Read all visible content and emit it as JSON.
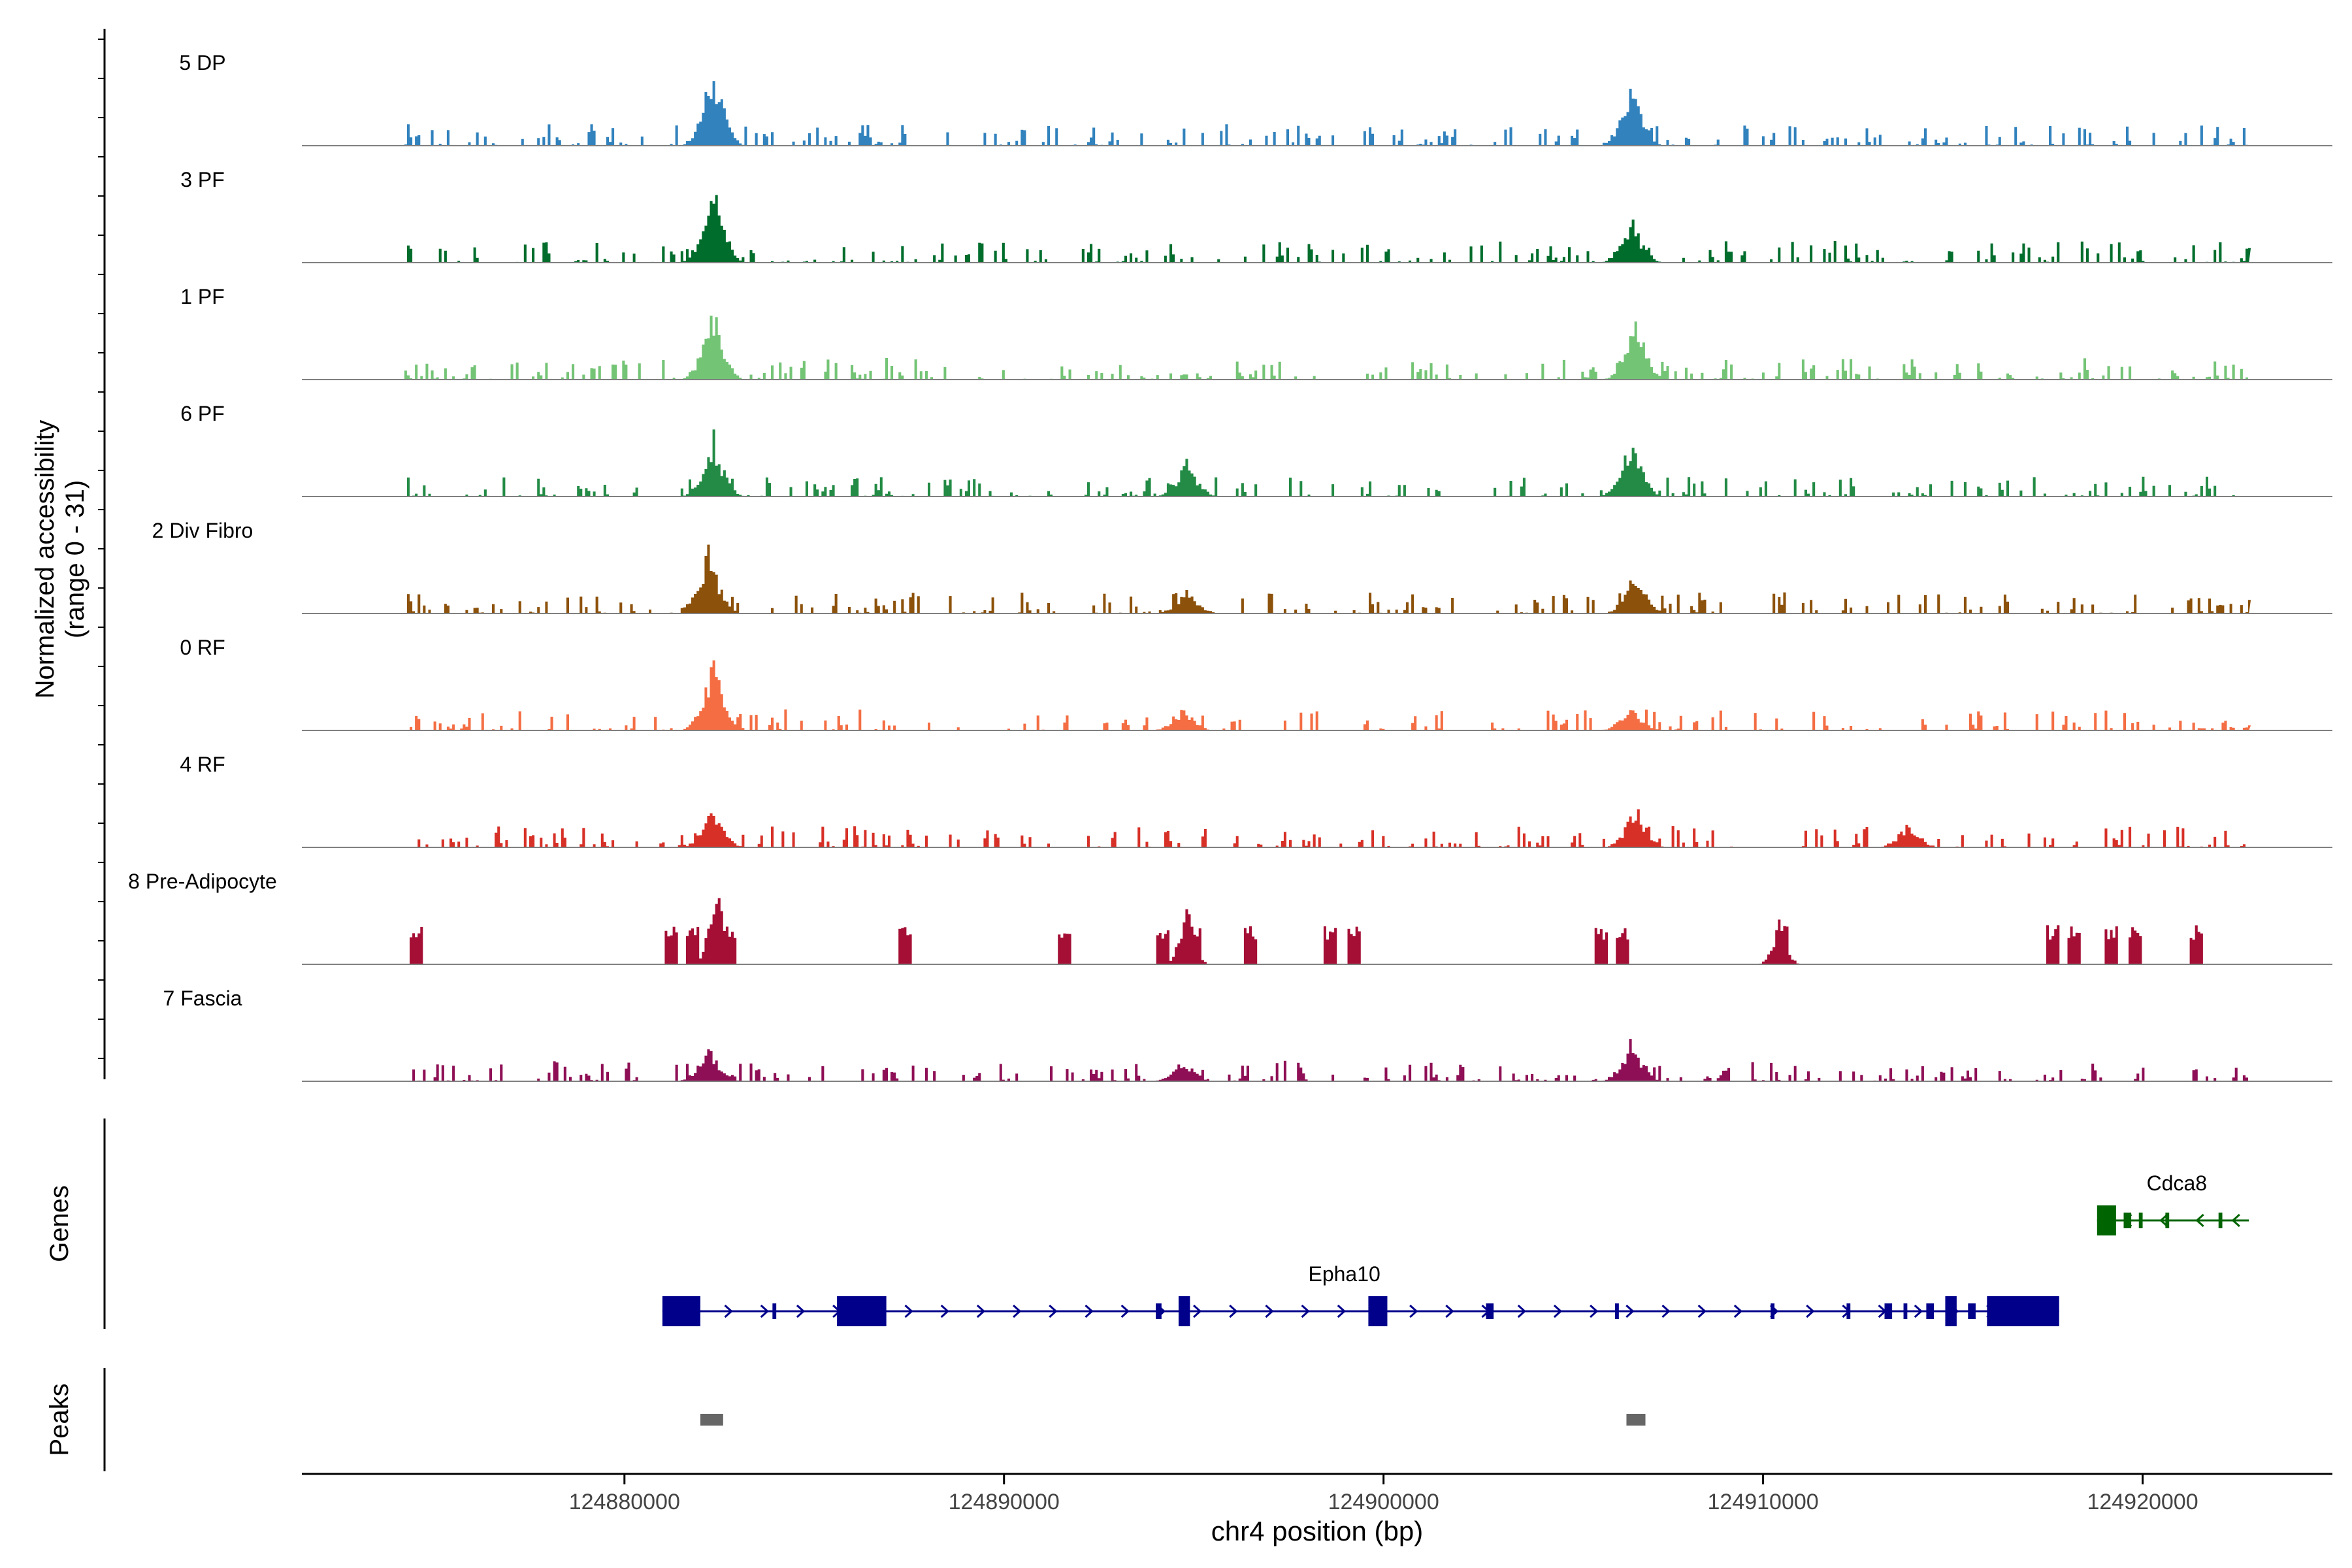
{
  "chart_data": {
    "type": "coverage",
    "y_axis_title_line1": "Normalized accessibility",
    "y_axis_title_line2": "(range 0 - 31)",
    "x_axis_title": "chr4 position (bp)",
    "x_range": [
      124871500,
      124925000
    ],
    "x_ticks": [
      124880000,
      124890000,
      124900000,
      124910000,
      124920000
    ],
    "x_tick_labels": [
      "124880000",
      "124890000",
      "124900000",
      "124910000",
      "124920000"
    ],
    "tracks": [
      {
        "name": "5 DP",
        "color": "#3182BD",
        "peaks": [
          [
            124882300,
            0.95
          ],
          [
            124906500,
            0.78
          ]
        ],
        "style": "dense"
      },
      {
        "name": "3 PF",
        "color": "#006D2C",
        "peaks": [
          [
            124882300,
            0.95
          ],
          [
            124906500,
            0.52
          ]
        ],
        "style": "dense"
      },
      {
        "name": "1 PF",
        "color": "#74C476",
        "peaks": [
          [
            124882300,
            0.82
          ],
          [
            124906600,
            0.72
          ]
        ],
        "style": "dense"
      },
      {
        "name": "6 PF",
        "color": "#238B45",
        "peaks": [
          [
            124882300,
            0.72
          ],
          [
            124906500,
            0.7
          ],
          [
            124894800,
            0.42
          ]
        ],
        "style": "dense"
      },
      {
        "name": "2 Div Fibro",
        "color": "#8C510A",
        "peaks": [
          [
            124882200,
            0.75
          ],
          [
            124906600,
            0.48
          ],
          [
            124894800,
            0.3
          ]
        ],
        "style": "dense"
      },
      {
        "name": "0 RF",
        "color": "#F46D43",
        "peaks": [
          [
            124882300,
            0.8
          ],
          [
            124906500,
            0.3
          ],
          [
            124894700,
            0.25
          ]
        ],
        "style": "dense"
      },
      {
        "name": "4 RF",
        "color": "#D73027",
        "peaks": [
          [
            124882300,
            0.45
          ],
          [
            124906600,
            0.48
          ],
          [
            124913800,
            0.3
          ]
        ],
        "style": "dense"
      },
      {
        "name": "8 Pre-Adipocyte",
        "color": "#A50F35",
        "peaks": [
          [
            124882400,
            0.98
          ],
          [
            124894800,
            0.82
          ],
          [
            124910400,
            0.48
          ]
        ],
        "style": "sparse"
      },
      {
        "name": "7 Fascia",
        "color": "#8E0F55",
        "peaks": [
          [
            124882200,
            0.42
          ],
          [
            124906500,
            0.48
          ],
          [
            124894700,
            0.25
          ]
        ],
        "style": "dense"
      }
    ],
    "genes_label": "Genes",
    "peaks_label": "Peaks",
    "genes": [
      {
        "name": "Epha10",
        "strand": "+",
        "color": "#00008B",
        "start": 124881000,
        "end": 124917800,
        "exons": [
          [
            124881000,
            124882000
          ],
          [
            124883900,
            124884000
          ],
          [
            124885600,
            124886900
          ],
          [
            124894000,
            124894150
          ],
          [
            124894600,
            124894900
          ],
          [
            124899600,
            124900100
          ],
          [
            124902700,
            124902900
          ],
          [
            124906100,
            124906200
          ],
          [
            124910200,
            124910300
          ],
          [
            124912200,
            124912300
          ],
          [
            124913200,
            124913400
          ],
          [
            124913700,
            124913800
          ],
          [
            124914300,
            124914500
          ],
          [
            124914800,
            124915100
          ],
          [
            124915400,
            124915600
          ],
          [
            124915900,
            124917800
          ]
        ]
      },
      {
        "name": "Cdca8",
        "strand": "-",
        "color": "#006400",
        "start": 124918800,
        "end": 124922800,
        "exons": [
          [
            124918800,
            124919300
          ],
          [
            124919500,
            124919700
          ],
          [
            124919900,
            124920000
          ],
          [
            124920600,
            124920700
          ],
          [
            124922000,
            124922100
          ]
        ]
      }
    ],
    "peak_regions": [
      [
        124882000,
        124882600
      ],
      [
        124906400,
        124906900
      ]
    ]
  }
}
